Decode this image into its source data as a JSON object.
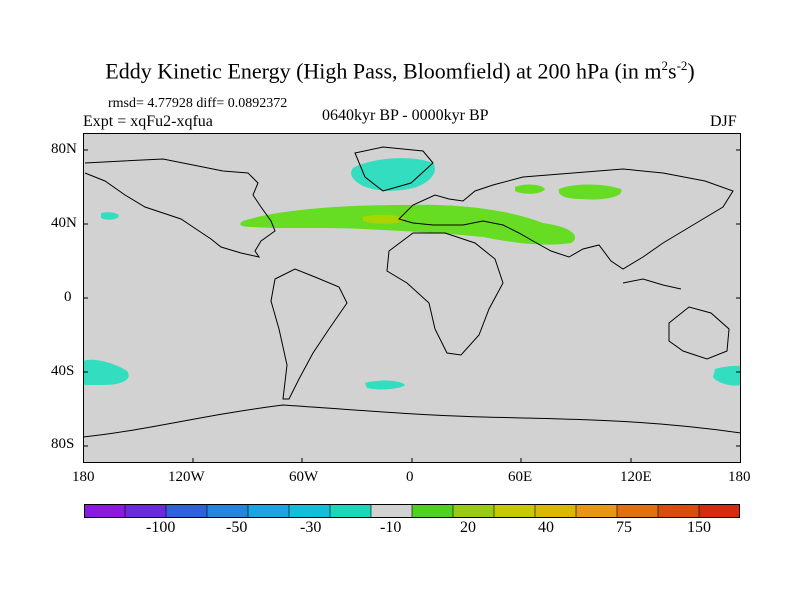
{
  "title": {
    "main": "Eddy Kinetic Energy (High Pass, Bloomfield) at 200 hPa (in m",
    "sup1": "2",
    "mid": "s",
    "sup2": "-2",
    "close": ")"
  },
  "stats": "rmsd= 4.77928 diff= 0.0892372",
  "experiment": "Expt = xqFu2-xqfua",
  "period": "0640kyr BP - 0000kyr BP",
  "season": "DJF",
  "y_ticks": [
    "80N",
    "40N",
    "0",
    "40S",
    "80S"
  ],
  "x_ticks": [
    "180",
    "120W",
    "60W",
    "0",
    "60E",
    "120E",
    "180"
  ],
  "colors": {
    "land_background": "#d2d2d2",
    "coast": "#000000",
    "negative_fill": "#33ddc0",
    "positive_fill": "#66dd22",
    "strong_positive_fill": "#aad400"
  },
  "colorbar": {
    "colors": [
      "#8a1ae0",
      "#6a2ae0",
      "#3060e0",
      "#2585dd",
      "#1aa5e0",
      "#10c0d8",
      "#18d8b8",
      "#d2d2d2",
      "#50d020",
      "#99cc10",
      "#c8c800",
      "#d8b800",
      "#e59810",
      "#e07010",
      "#dd4a10",
      "#d82a10"
    ],
    "labels": [
      "-100",
      "-50",
      "-30",
      "-10",
      "20",
      "40",
      "75",
      "150"
    ]
  }
}
